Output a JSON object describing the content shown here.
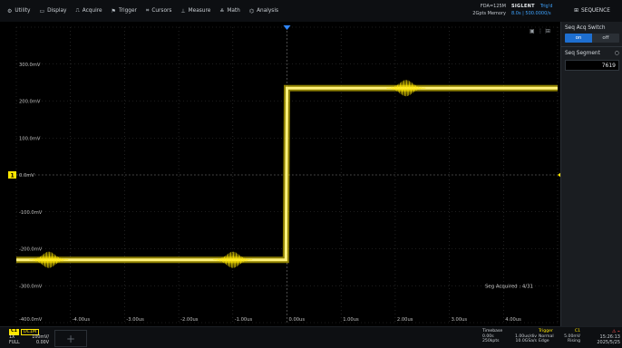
{
  "menu": [
    {
      "icon": "⚙",
      "icon_name": "gear-icon",
      "label": "Utility"
    },
    {
      "icon": "▭",
      "icon_name": "display-icon",
      "label": "Display"
    },
    {
      "icon": "⎍",
      "icon_name": "acquire-icon",
      "label": "Acquire"
    },
    {
      "icon": "⚑",
      "icon_name": "trigger-icon",
      "label": "Trigger"
    },
    {
      "icon": "⌗",
      "icon_name": "cursors-icon",
      "label": "Cursors"
    },
    {
      "icon": "⊥",
      "icon_name": "measure-icon",
      "label": "Measure"
    },
    {
      "icon": "≚",
      "icon_name": "math-icon",
      "label": "Math"
    },
    {
      "icon": "⌬",
      "icon_name": "analysis-icon",
      "label": "Analysis"
    }
  ],
  "acquisition": {
    "line1": "FDA=125M",
    "line2": "2Gpts Memory"
  },
  "brand": {
    "logo": "SIGLENT",
    "status": "Trig'd",
    "sample_rate": "8.0s | 500.0000/s"
  },
  "seq_panel": {
    "title": "SEQUENCE",
    "switch_label": "Seq Acq Switch",
    "on": "on",
    "off": "off",
    "segment_label": "Seq Segment",
    "segment_value": "7619"
  },
  "screen": {
    "top_icons": [
      "▣",
      "⋮⋮",
      "⊞"
    ],
    "seg_acquired": "Seg Acquired : 4/31",
    "ch1_marker": "1",
    "y_labels": [
      "300.0mV",
      "200.0mV",
      "100.0mV",
      "0.0mV",
      "-100.0mV",
      "-200.0mV",
      "-300.0mV",
      "-400.0mV"
    ],
    "x_labels": [
      "-4.00us",
      "-3.00us",
      "-2.00us",
      "-1.00us",
      "0.00us",
      "1.00us",
      "2.00us",
      "3.00us",
      "4.00us"
    ]
  },
  "channel": {
    "name": "C1",
    "coupling": "DC1M",
    "row1_label": "1X",
    "row1_value": "100mV/",
    "row2_label": "FULL",
    "row2_value": "0.00V"
  },
  "timebase": {
    "title": "Timebase",
    "sub": "0.00s",
    "row1": [
      "0.00s",
      "1.00us/div"
    ],
    "row2": [
      "250kpts",
      "10.0GSa/s"
    ]
  },
  "trigger": {
    "title": "Trigger",
    "ch": "C1",
    "row1": [
      "Normal",
      "5.00mV"
    ],
    "row2": [
      "Edge",
      "Rising"
    ]
  },
  "clock": {
    "time": "15:26:13",
    "date": "2025/5/25"
  },
  "colors": {
    "accent": "#1e6fd0",
    "ch1": "#ffe600",
    "background": "#000000"
  },
  "chart_data": {
    "type": "line",
    "title": "",
    "xlabel": "",
    "ylabel": "",
    "xlim": [
      -5,
      5
    ],
    "ylim": [
      -400,
      400
    ],
    "series": [
      {
        "x": [
          -5,
          -0.02,
          0.0,
          5
        ],
        "y": [
          -230,
          -230,
          235,
          235
        ]
      }
    ],
    "noise_bursts_us": [
      -4.4,
      -1.0,
      2.2
    ]
  }
}
